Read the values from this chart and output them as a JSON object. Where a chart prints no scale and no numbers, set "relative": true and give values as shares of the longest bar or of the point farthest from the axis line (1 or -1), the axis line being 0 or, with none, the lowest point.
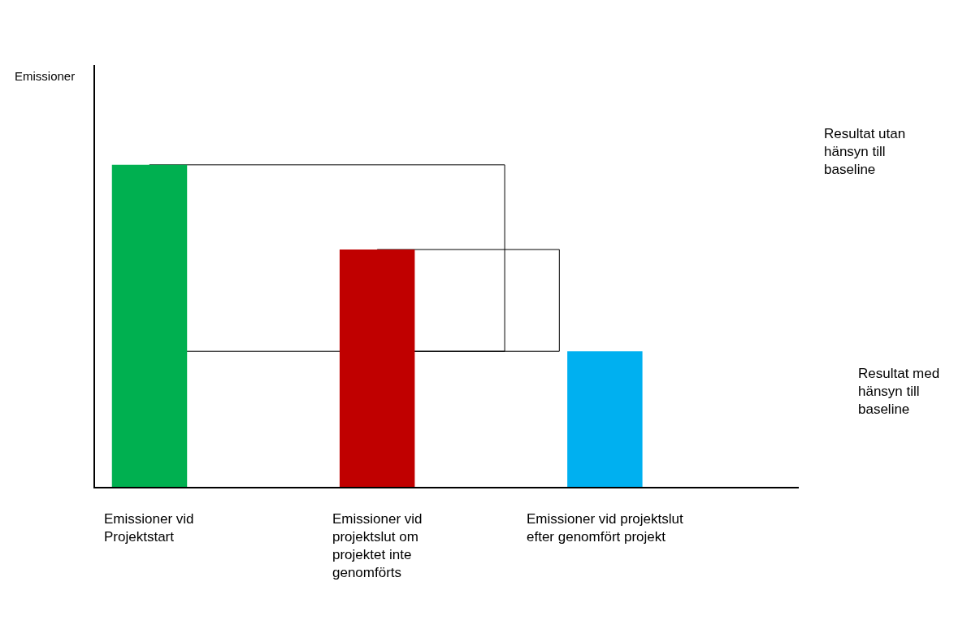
{
  "chart_data": {
    "type": "bar",
    "relative": true,
    "categories": [
      "Emissioner vid Projektstart",
      "Emissioner vid projektslut om projektet inte genomförts",
      "Emissioner vid projektslut efter genomfört projekt"
    ],
    "values": [
      1,
      0.737,
      0.421
    ],
    "colors": [
      "#00b050",
      "#c00000",
      "#00b0f0"
    ],
    "annotations": [
      "Emissioner",
      "Resultat utan hänsyn till baseline",
      "Resultat med hänsyn till baseline"
    ],
    "grid": false
  }
}
